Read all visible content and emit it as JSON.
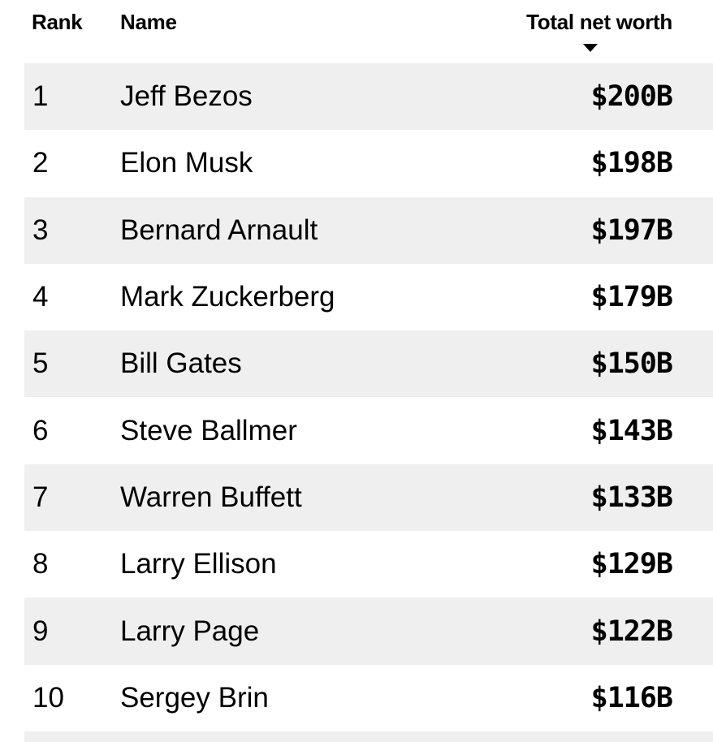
{
  "header": {
    "rank_label": "Rank",
    "name_label": "Name",
    "worth_label": "Total net worth",
    "sort_icon": "caret-down-icon"
  },
  "rows": [
    {
      "rank": "1",
      "name": "Jeff Bezos",
      "worth": "$200B"
    },
    {
      "rank": "2",
      "name": "Elon Musk",
      "worth": "$198B"
    },
    {
      "rank": "3",
      "name": "Bernard Arnault",
      "worth": "$197B"
    },
    {
      "rank": "4",
      "name": "Mark Zuckerberg",
      "worth": "$179B"
    },
    {
      "rank": "5",
      "name": "Bill Gates",
      "worth": "$150B"
    },
    {
      "rank": "6",
      "name": "Steve Ballmer",
      "worth": "$143B"
    },
    {
      "rank": "7",
      "name": "Warren Buffett",
      "worth": "$133B"
    },
    {
      "rank": "8",
      "name": "Larry Ellison",
      "worth": "$129B"
    },
    {
      "rank": "9",
      "name": "Larry Page",
      "worth": "$122B"
    },
    {
      "rank": "10",
      "name": "Sergey Brin",
      "worth": "$116B"
    }
  ],
  "colors": {
    "stripe": "#efefef",
    "text": "#000000",
    "background": "#ffffff"
  }
}
